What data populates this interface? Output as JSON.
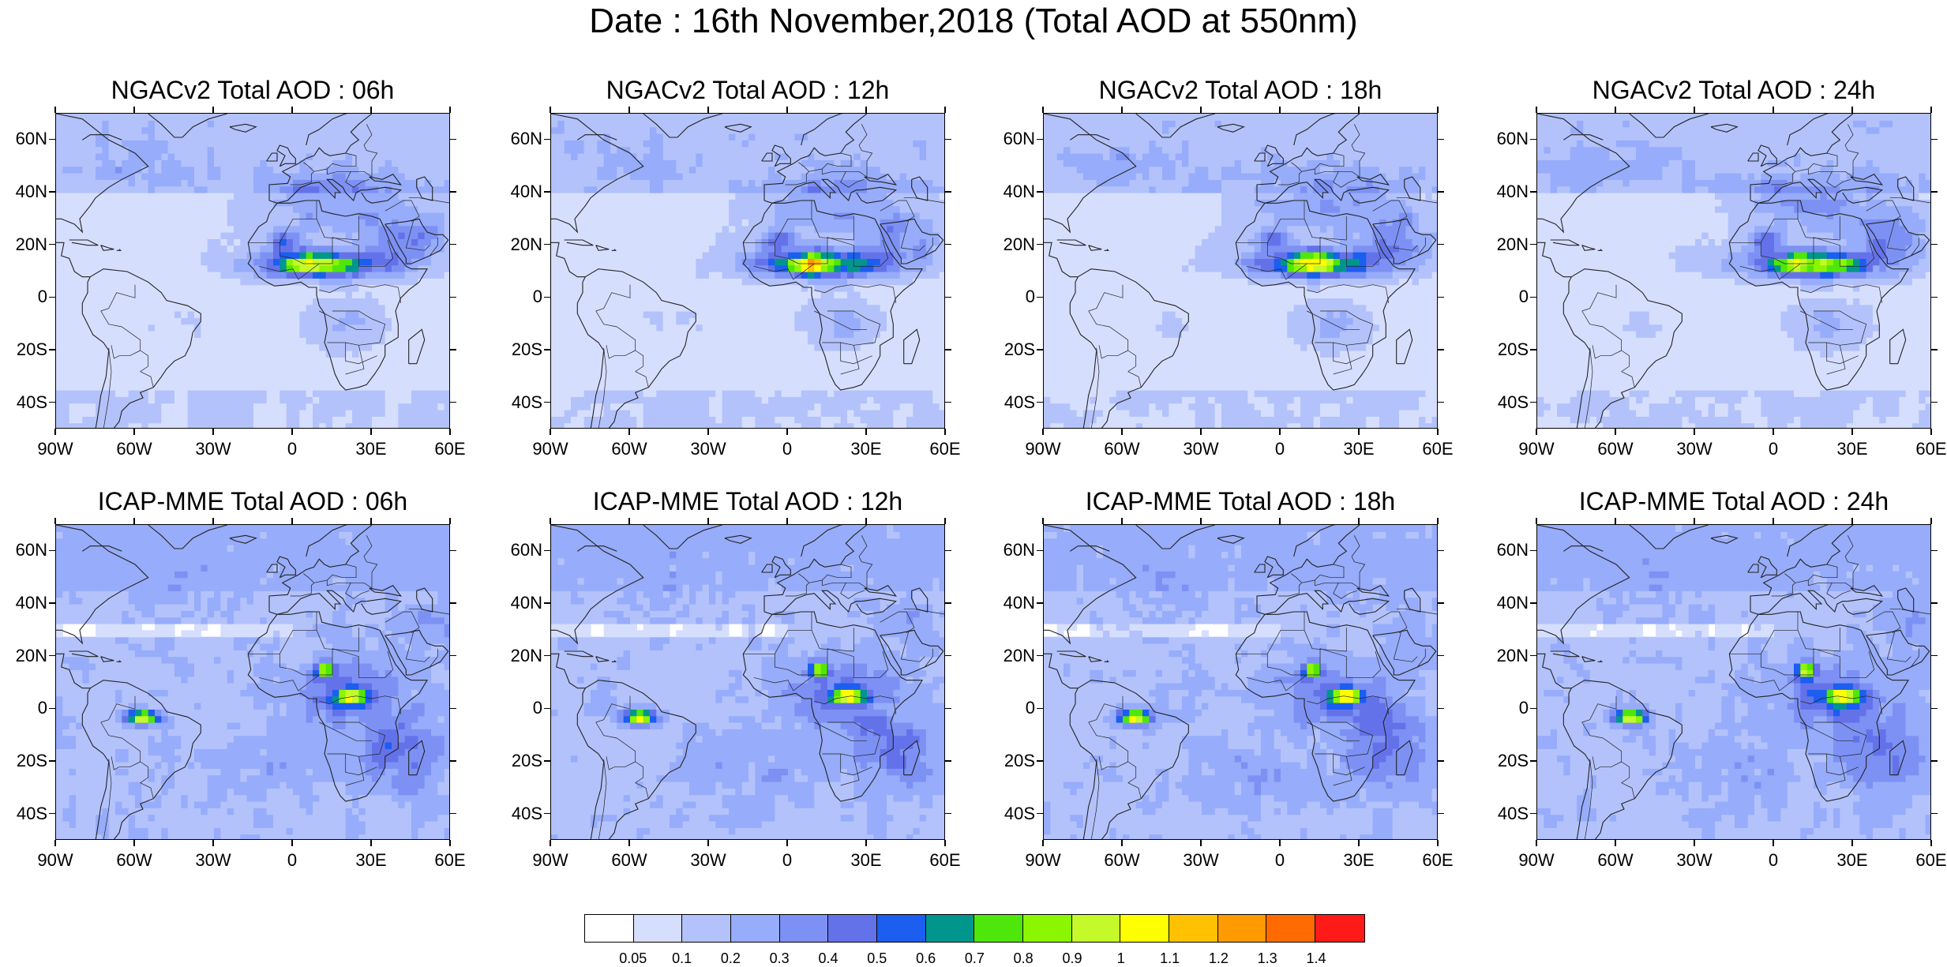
{
  "title": "Date : 16th November,2018 (Total AOD at 550nm)",
  "panels": [
    {
      "model": "NGACv2",
      "title": "NGACv2 Total AOD : 06h",
      "type": "ngac",
      "phase": 0
    },
    {
      "model": "NGACv2",
      "title": "NGACv2 Total AOD : 12h",
      "type": "ngac",
      "phase": 1
    },
    {
      "model": "NGACv2",
      "title": "NGACv2 Total AOD : 18h",
      "type": "ngac",
      "phase": 2
    },
    {
      "model": "NGACv2",
      "title": "NGACv2 Total AOD : 24h",
      "type": "ngac",
      "phase": 3
    },
    {
      "model": "ICAP-MME",
      "title": "ICAP-MME Total AOD : 06h",
      "type": "icap",
      "phase": 0
    },
    {
      "model": "ICAP-MME",
      "title": "ICAP-MME Total AOD : 12h",
      "type": "icap",
      "phase": 1
    },
    {
      "model": "ICAP-MME",
      "title": "ICAP-MME Total AOD : 18h",
      "type": "icap",
      "phase": 2
    },
    {
      "model": "ICAP-MME",
      "title": "ICAP-MME Total AOD : 24h",
      "type": "icap",
      "phase": 3
    }
  ],
  "lat_labels": [
    "60N",
    "40N",
    "20N",
    "0",
    "20S",
    "40S"
  ],
  "lon_labels": [
    "90W",
    "60W",
    "30W",
    "0",
    "30E",
    "60E"
  ],
  "map_extent": {
    "lon": [
      -90,
      60
    ],
    "lat": [
      -50,
      70
    ]
  },
  "colorbar": {
    "labels": [
      "0.05",
      "0.1",
      "0.2",
      "0.3",
      "0.4",
      "0.5",
      "0.6",
      "0.7",
      "0.8",
      "0.9",
      "1",
      "1.1",
      "1.2",
      "1.3",
      "1.4"
    ],
    "colors": [
      "#ffffff",
      "#d6defe",
      "#b3c2fb",
      "#97acfa",
      "#7d91f4",
      "#6472ea",
      "#1b5ef0",
      "#00968e",
      "#4fe60b",
      "#8cf500",
      "#c4fa2a",
      "#ffff00",
      "#ffc100",
      "#ff9a00",
      "#ff6b00",
      "#ff1a1a"
    ]
  }
}
